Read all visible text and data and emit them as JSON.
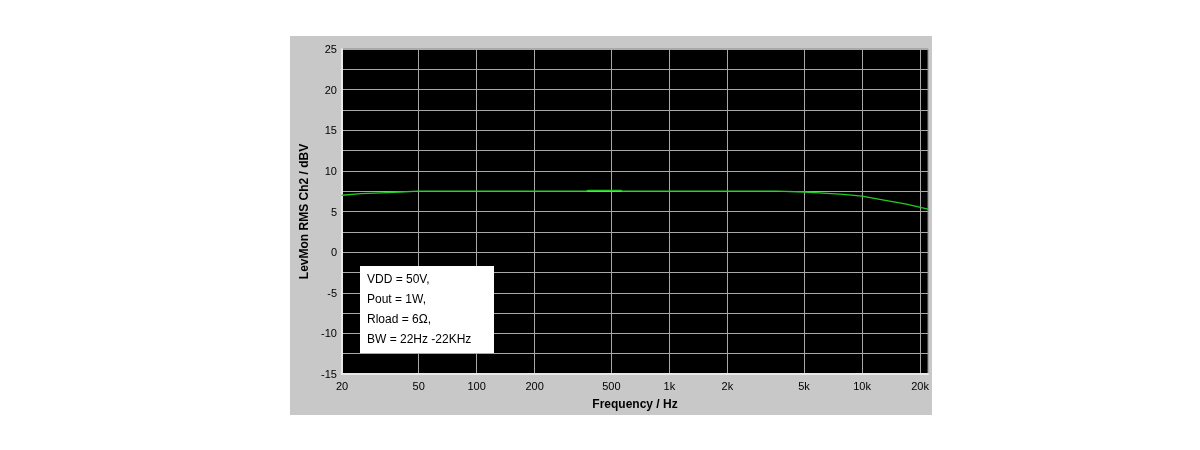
{
  "chart_data": {
    "type": "line",
    "xlabel": "Frequency / Hz",
    "ylabel": "LevMon RMS Ch2 / dBV",
    "x": [
      20,
      25,
      32,
      40,
      50,
      100,
      200,
      370,
      380,
      560,
      570,
      1000,
      2000,
      3600,
      5000,
      6000,
      8000,
      10000,
      13000,
      17000,
      22000
    ],
    "values": [
      7.0,
      7.2,
      7.3,
      7.4,
      7.5,
      7.5,
      7.5,
      7.5,
      7.6,
      7.6,
      7.5,
      7.5,
      7.5,
      7.5,
      7.4,
      7.3,
      7.1,
      6.9,
      6.4,
      5.9,
      5.3
    ],
    "color": "#22cc22",
    "log": "x",
    "xlim": [
      20,
      22000
    ],
    "xticks": [
      20,
      50,
      100,
      200,
      500,
      {
        "value": 1000,
        "label": "1k"
      },
      {
        "value": 2000,
        "label": "2k"
      },
      {
        "value": 5000,
        "label": "5k"
      },
      {
        "value": 10000,
        "label": "10k"
      },
      {
        "value": 20000,
        "label": "20k"
      }
    ],
    "ylim": [
      -15,
      25
    ],
    "yticks": [
      -15,
      {
        "value": -12.5,
        "label": null
      },
      -10,
      {
        "value": -7.5,
        "label": null
      },
      -5,
      {
        "value": -2.5,
        "label": null
      },
      0,
      {
        "value": 2.5,
        "label": null
      },
      5,
      {
        "value": 7.5,
        "label": null
      },
      10,
      {
        "value": 12.5,
        "label": null
      },
      15,
      {
        "value": 17.5,
        "label": null
      },
      20,
      {
        "value": 22.5,
        "label": null
      },
      25
    ],
    "grid": true,
    "annotations": [
      "VDD = 50V,",
      "Pout = 1W,",
      "Rload = 6Ω,",
      "BW = 22Hz -22KHz"
    ]
  }
}
